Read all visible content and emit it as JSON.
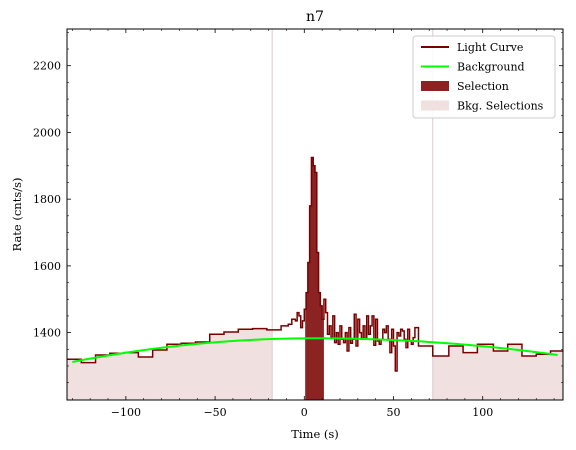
{
  "chart_data": {
    "type": "line",
    "title": "n7",
    "xlabel": "Time (s)",
    "ylabel": "Rate (cnts/s)",
    "xlim": [
      -133,
      145
    ],
    "ylim": [
      1198,
      2310
    ],
    "xticks": [
      -100,
      -50,
      0,
      50,
      100
    ],
    "yticks": [
      1400,
      1600,
      1800,
      2000,
      2200
    ],
    "xtick_labels": [
      "−100",
      "−50",
      "0",
      "50",
      "100"
    ],
    "ytick_labels": [
      "1400",
      "1600",
      "1800",
      "2000",
      "2200"
    ],
    "grid": false,
    "legend": {
      "placement": "top-right",
      "entries": [
        {
          "label": "Light Curve",
          "kind": "line",
          "color": "#7a0000"
        },
        {
          "label": "Background",
          "kind": "line",
          "color": "#00ff00"
        },
        {
          "label": "Selection",
          "kind": "patch",
          "color": "#8b2323"
        },
        {
          "label": "Bkg. Selections",
          "kind": "patch",
          "color": "#f0e0e0"
        }
      ]
    },
    "colors": {
      "light_curve": "#7a0000",
      "background": "#00ff00",
      "selection": "#8b2323",
      "bkg_selection": "#f0e0e0",
      "bkg_selection_edge": "#e2c8c8"
    },
    "selection": {
      "start": 0.5,
      "end": 11
    },
    "bkg_selections": [
      [
        -133,
        -18
      ],
      [
        72,
        145
      ]
    ],
    "background_curve": {
      "x0": -130,
      "x1": 142,
      "peak_x": 6,
      "peak_y": 1383,
      "edge_y_left": 1312,
      "edge_y_right": 1333
    },
    "light_curve": {
      "x": [
        -133,
        -125,
        -117,
        -109,
        -101,
        -93,
        -85,
        -77,
        -69,
        -61,
        -53,
        -45,
        -37,
        -29,
        -21,
        -13,
        -9,
        -7,
        -5,
        -4,
        -3,
        -2,
        -1,
        0,
        1,
        2,
        3,
        4,
        5,
        6,
        7,
        8,
        9,
        10,
        11,
        12,
        13,
        14,
        15,
        16,
        17,
        18,
        19,
        20,
        21,
        22,
        23,
        24,
        25,
        26,
        27,
        28,
        29,
        30,
        31,
        32,
        33,
        34,
        35,
        36,
        37,
        38,
        39,
        40,
        41,
        42,
        43,
        44,
        45,
        46,
        47,
        48,
        49,
        50,
        51,
        52,
        53,
        54,
        55,
        56,
        57,
        58,
        59,
        60,
        61,
        62,
        64,
        72,
        81,
        89,
        97,
        106,
        114,
        122,
        130,
        138,
        145
      ],
      "y": [
        1320,
        1310,
        1333,
        1338,
        1340,
        1327,
        1348,
        1365,
        1368,
        1372,
        1395,
        1402,
        1410,
        1412,
        1408,
        1420,
        1425,
        1440,
        1435,
        1460,
        1450,
        1415,
        1435,
        1470,
        1520,
        1610,
        1780,
        1925,
        1900,
        1880,
        1640,
        1520,
        1480,
        1440,
        1500,
        1460,
        1395,
        1420,
        1385,
        1450,
        1370,
        1400,
        1365,
        1420,
        1380,
        1370,
        1400,
        1345,
        1415,
        1368,
        1380,
        1455,
        1360,
        1440,
        1400,
        1380,
        1420,
        1380,
        1450,
        1395,
        1420,
        1450,
        1362,
        1440,
        1375,
        1365,
        1380,
        1410,
        1400,
        1420,
        1380,
        1340,
        1410,
        1360,
        1285,
        1400,
        1390,
        1410,
        1405,
        1380,
        1355,
        1410,
        1375,
        1365,
        1385,
        1415,
        1360,
        1330,
        1360,
        1340,
        1365,
        1345,
        1365,
        1330,
        1335,
        1345,
        1345
      ]
    }
  }
}
